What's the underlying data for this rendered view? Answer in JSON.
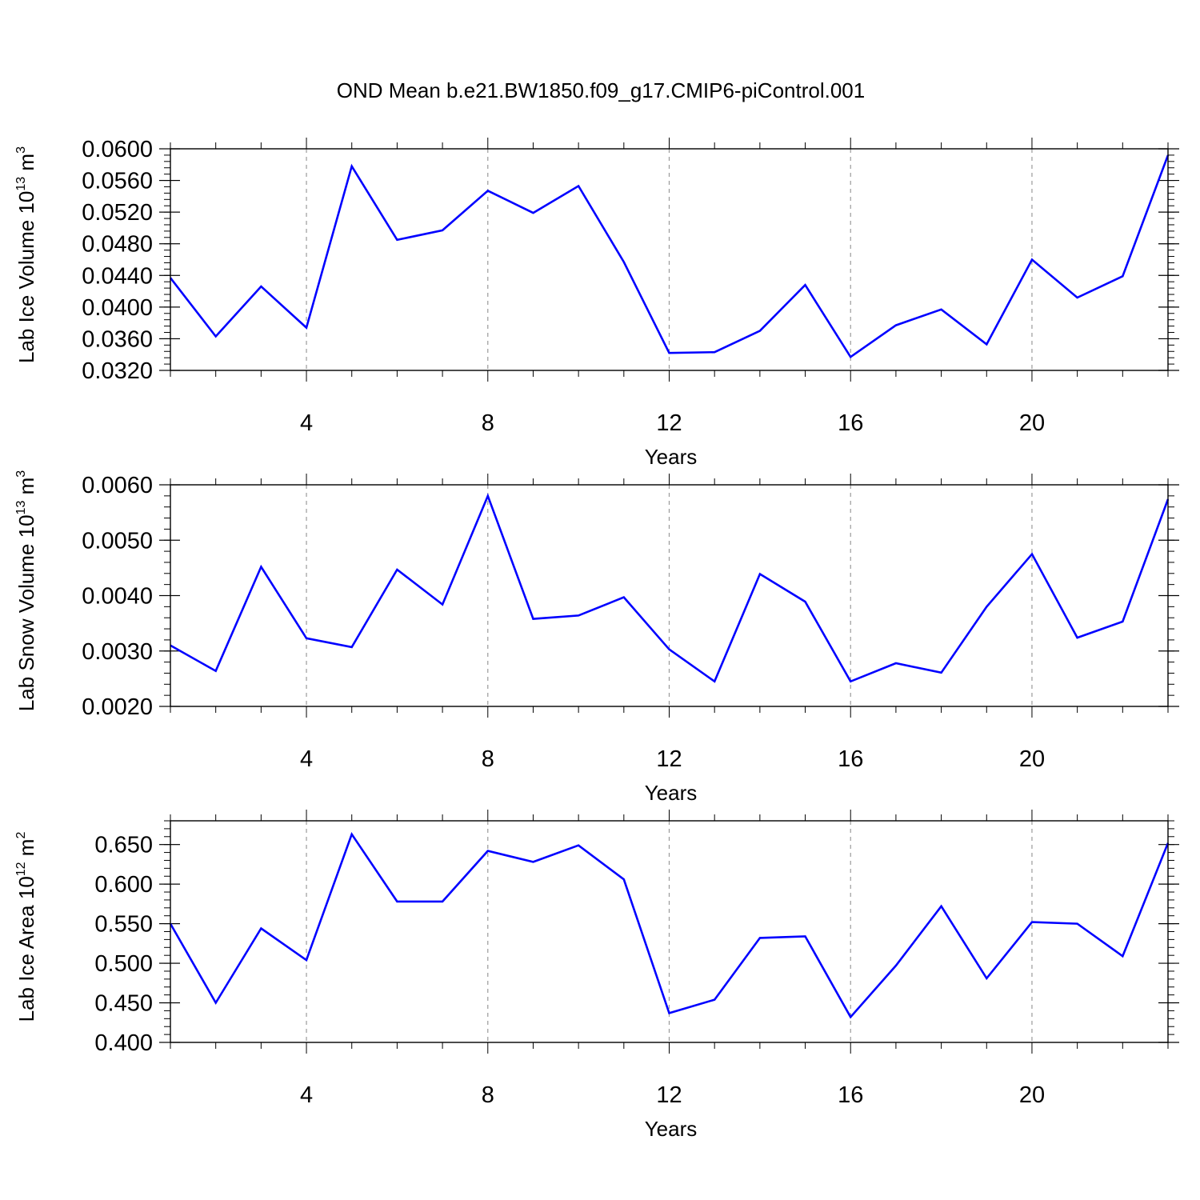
{
  "title": "OND Mean b.e21.BW1850.f09_g17.CMIP6-piControl.001",
  "line_color": "#0000ff",
  "chart_data": [
    {
      "type": "line",
      "ylabel_main": "Lab Ice Volume 10",
      "ylabel_exp": "13",
      "ylabel_unit": " m",
      "ylabel_unit_exp": "3",
      "xlabel": "Years",
      "xlim": [
        1,
        23
      ],
      "ylim": [
        0.032,
        0.06
      ],
      "x_ticks": [
        "4",
        "8",
        "12",
        "16",
        "20"
      ],
      "y_ticks": [
        "0.0320",
        "0.0360",
        "0.0400",
        "0.0440",
        "0.0480",
        "0.0520",
        "0.0560",
        "0.0600"
      ],
      "x": [
        1,
        2,
        3,
        4,
        5,
        6,
        7,
        8,
        9,
        10,
        11,
        12,
        13,
        14,
        15,
        16,
        17,
        18,
        19,
        20,
        21,
        22,
        23
      ],
      "values": [
        0.0437,
        0.0363,
        0.0426,
        0.0374,
        0.0578,
        0.0485,
        0.0497,
        0.0547,
        0.0519,
        0.0553,
        0.0457,
        0.0342,
        0.0343,
        0.037,
        0.0428,
        0.0337,
        0.0377,
        0.0397,
        0.0353,
        0.046,
        0.0412,
        0.0439,
        0.0592
      ]
    },
    {
      "type": "line",
      "ylabel_main": "Lab Snow Volume 10",
      "ylabel_exp": "13",
      "ylabel_unit": " m",
      "ylabel_unit_exp": "3",
      "xlabel": "Years",
      "xlim": [
        1,
        23
      ],
      "ylim": [
        0.002,
        0.006
      ],
      "x_ticks": [
        "4",
        "8",
        "12",
        "16",
        "20"
      ],
      "y_ticks": [
        "0.0020",
        "0.0030",
        "0.0040",
        "0.0050",
        "0.0060"
      ],
      "x": [
        1,
        2,
        3,
        4,
        5,
        6,
        7,
        8,
        9,
        10,
        11,
        12,
        13,
        14,
        15,
        16,
        17,
        18,
        19,
        20,
        21,
        22,
        23
      ],
      "values": [
        0.0031,
        0.00264,
        0.00452,
        0.00323,
        0.00307,
        0.00447,
        0.00384,
        0.0058,
        0.00358,
        0.00364,
        0.00397,
        0.00303,
        0.00245,
        0.00439,
        0.00389,
        0.00245,
        0.00278,
        0.00261,
        0.0038,
        0.00475,
        0.00324,
        0.00353,
        0.00574
      ]
    },
    {
      "type": "line",
      "ylabel_main": "Lab Ice Area 10",
      "ylabel_exp": "12",
      "ylabel_unit": " m",
      "ylabel_unit_exp": "2",
      "xlabel": "Years",
      "xlim": [
        1,
        23
      ],
      "ylim": [
        0.4,
        0.68
      ],
      "x_ticks": [
        "4",
        "8",
        "12",
        "16",
        "20"
      ],
      "y_ticks": [
        "0.400",
        "0.450",
        "0.500",
        "0.550",
        "0.600",
        "0.650"
      ],
      "x": [
        1,
        2,
        3,
        4,
        5,
        6,
        7,
        8,
        9,
        10,
        11,
        12,
        13,
        14,
        15,
        16,
        17,
        18,
        19,
        20,
        21,
        22,
        23
      ],
      "values": [
        0.55,
        0.45,
        0.544,
        0.504,
        0.663,
        0.578,
        0.578,
        0.642,
        0.628,
        0.649,
        0.606,
        0.437,
        0.454,
        0.532,
        0.534,
        0.432,
        0.497,
        0.572,
        0.481,
        0.552,
        0.55,
        0.509,
        0.652
      ]
    }
  ]
}
